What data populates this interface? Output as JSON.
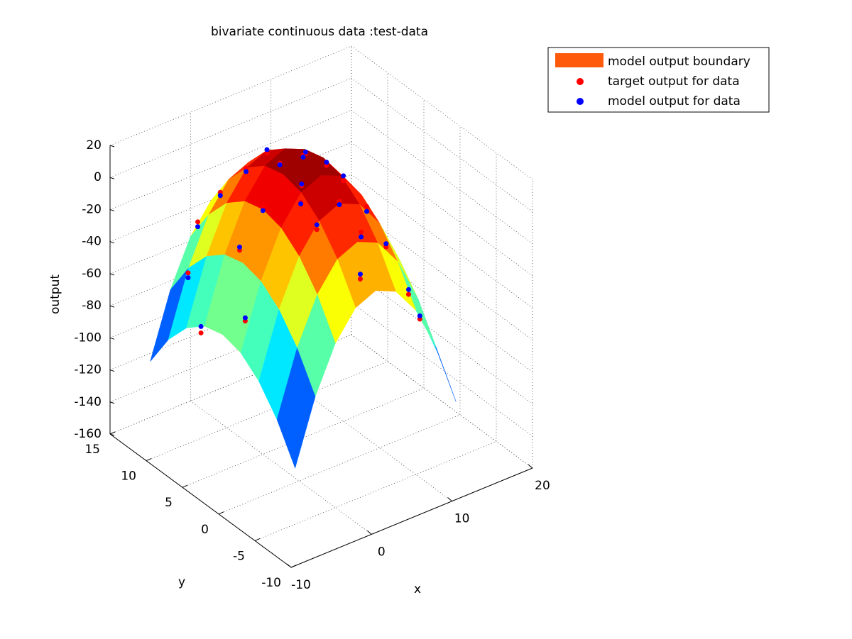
{
  "chart_data": {
    "type": "surface3d",
    "title": "bivariate continuous data :test-data",
    "xlabel": "x",
    "ylabel": "y",
    "zlabel": "output",
    "xlim": [
      -10,
      20
    ],
    "ylim": [
      -10,
      15
    ],
    "zlim": [
      -160,
      20
    ],
    "xticks": [
      -10,
      0,
      10,
      20
    ],
    "yticks": [
      -10,
      -5,
      0,
      5,
      10,
      15
    ],
    "zticks": [
      -160,
      -140,
      -120,
      -100,
      -80,
      -60,
      -40,
      -20,
      0,
      20
    ],
    "grid": true,
    "legend": "upper right",
    "surface": {
      "name": "model output boundary",
      "color": "#ff5a0a",
      "colormap": "jet",
      "clim": [
        -125,
        15
      ],
      "x": [
        -5,
        -2.5,
        0,
        2.5,
        5,
        7.5,
        10,
        12.5,
        15
      ],
      "y": [
        -5,
        -2.5,
        0,
        2.5,
        5,
        7.5,
        10,
        12.5,
        15
      ],
      "z": [
        [
          -125,
          -85.6,
          -57.5,
          -40.6,
          -35,
          -40.6,
          -57.5,
          -85.6,
          -125
        ],
        [
          -103.1,
          -63.7,
          -35.6,
          -18.7,
          -13.1,
          -18.7,
          -35.6,
          -63.7,
          -103.1
        ],
        [
          -87.5,
          -48.1,
          -20,
          -3.1,
          2.5,
          -3.1,
          -20,
          -48.1,
          -87.5
        ],
        [
          -78.1,
          -38.7,
          -10.6,
          6.3,
          11.9,
          6.3,
          -10.6,
          -38.7,
          -78.1
        ],
        [
          -75,
          -35.6,
          -7.5,
          9.4,
          15,
          9.4,
          -7.5,
          -35.6,
          -75
        ],
        [
          -78.1,
          -38.7,
          -10.6,
          6.3,
          11.9,
          6.3,
          -10.6,
          -38.7,
          -78.1
        ],
        [
          -87.5,
          -48.1,
          -20,
          -3.1,
          2.5,
          -3.1,
          -20,
          -48.1,
          -87.5
        ],
        [
          -103.1,
          -63.7,
          -35.6,
          -18.7,
          -13.1,
          -18.7,
          -35.6,
          -63.7,
          -103.1
        ],
        [
          -125,
          -85.6,
          -57.5,
          -40.6,
          -35,
          -40.6,
          -57.5,
          -85.6,
          -125
        ]
      ]
    },
    "series": [
      {
        "name": "target output for data",
        "color": "#ff0000",
        "x": [
          5,
          3,
          7,
          0,
          10,
          5,
          5,
          2,
          8,
          -2,
          12,
          1,
          9,
          -4,
          14,
          -5,
          6,
          4,
          13,
          -3,
          15,
          0,
          10,
          3
        ],
        "y": [
          5,
          6,
          4,
          5,
          5,
          0,
          10,
          2,
          8,
          6,
          4,
          12,
          -2,
          3,
          7,
          8,
          14,
          -4,
          12,
          12,
          0,
          14,
          -4,
          3
        ],
        "z": [
          16,
          12,
          9,
          -6,
          -10,
          4,
          1,
          3,
          1,
          -32,
          -27,
          -22,
          -26,
          -62,
          -57,
          -84,
          -24,
          -29,
          -70,
          -64,
          -90,
          -45,
          -51,
          8
        ]
      },
      {
        "name": "model output for data",
        "color": "#0000ff",
        "x": [
          5,
          3,
          7,
          0,
          10,
          5,
          5,
          2,
          8,
          -2,
          12,
          1,
          9,
          -4,
          14,
          -5,
          6,
          4,
          13,
          -3,
          15,
          0,
          10,
          3
        ],
        "y": [
          5,
          6,
          4,
          5,
          5,
          0,
          10,
          2,
          8,
          6,
          4,
          12,
          -2,
          3,
          7,
          8,
          14,
          -4,
          12,
          12,
          0,
          14,
          -4,
          3
        ],
        "z": [
          15,
          11,
          11,
          -8,
          -7,
          2,
          3,
          2,
          2,
          -30,
          -30,
          -24,
          -24,
          -60,
          -60,
          -80,
          -26,
          -26,
          -67,
          -67,
          -88,
          -48,
          -48,
          9
        ]
      }
    ]
  }
}
